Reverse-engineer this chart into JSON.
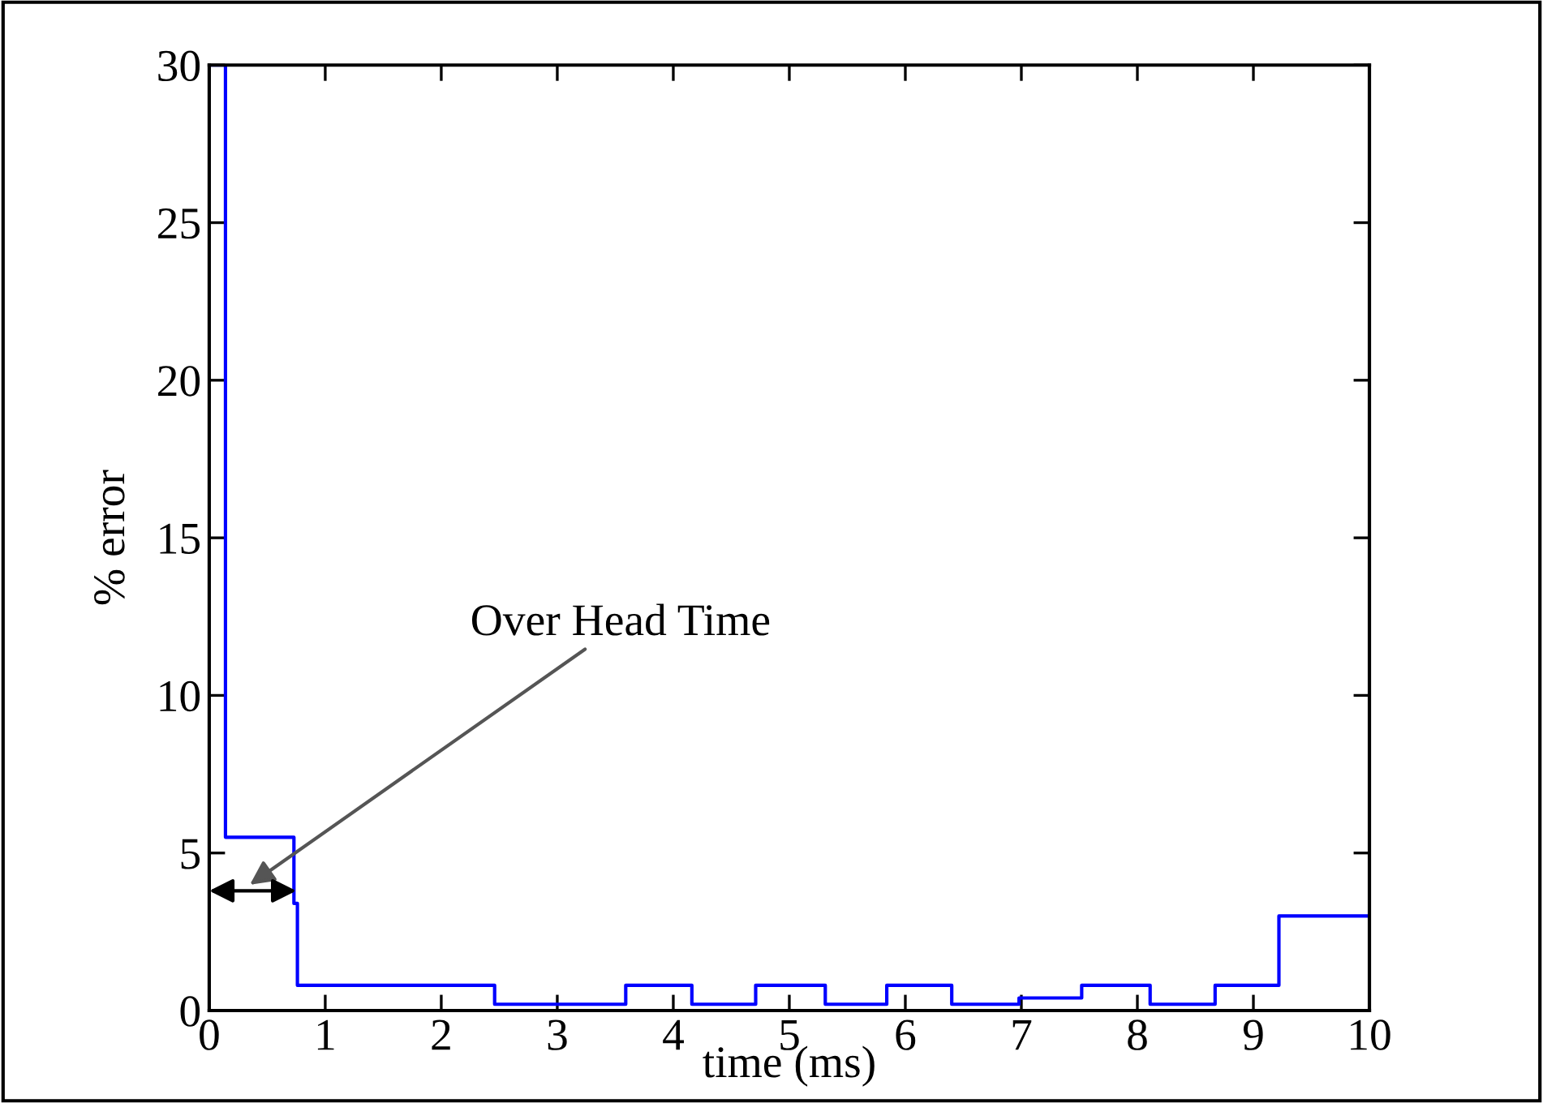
{
  "chart_data": {
    "type": "step",
    "xlabel": "time (ms)",
    "ylabel": "% error",
    "x": [
      0,
      0.14,
      0.73,
      0.76,
      2.46,
      3.59,
      4.16,
      4.71,
      5.31,
      5.84,
      6.4,
      6.98,
      7.52,
      8.11,
      8.67,
      9.22,
      10
    ],
    "series": [
      {
        "color": "#0000ff",
        "values": [
          30,
          5.5,
          3.4,
          0.8,
          0.2,
          0.8,
          0.2,
          0.8,
          0.2,
          0.8,
          0.2,
          0.4,
          0.8,
          0.2,
          0.8,
          3.0,
          3.0
        ]
      }
    ],
    "xlim": [
      0,
      10
    ],
    "ylim": [
      0,
      30
    ],
    "xticks": [
      0,
      1,
      2,
      3,
      4,
      5,
      6,
      7,
      8,
      9,
      10
    ],
    "yticks": [
      0,
      5,
      10,
      15,
      20,
      25,
      30
    ],
    "grid": false,
    "legend": false,
    "annotations": [
      "Over Head Time"
    ]
  }
}
